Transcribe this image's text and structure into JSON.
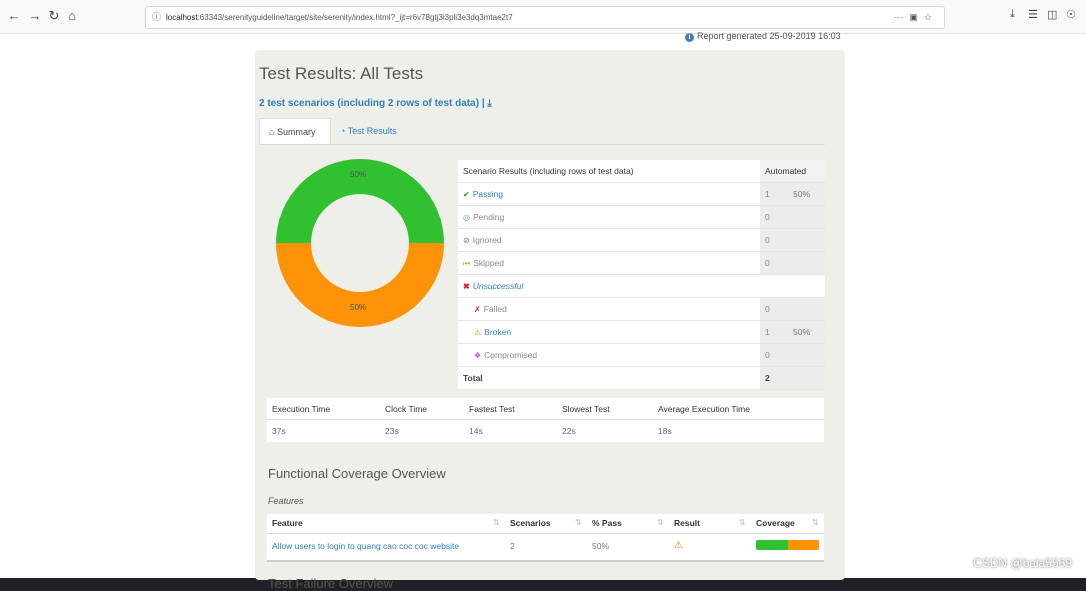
{
  "browser": {
    "url_host": "localhost",
    "url_rest": ":63343/serenityguideline/target/site/serenity/index.html?_ijt=r6v78gtj3i3pli3e3dq3mtae2t7"
  },
  "report": {
    "generated": "Report generated 25-09-2019 16:03",
    "title": "Test Results: All Tests",
    "scenarios_link": "2 test scenarios (including 2 rows of test data) |",
    "tabs": [
      "Summary",
      "Test Results"
    ]
  },
  "donut": {
    "passing_label": "50%",
    "failing_label": "50%",
    "passing_fraction": 0.5,
    "colors": {
      "passing": "#30c030",
      "broken": "#ff9308"
    }
  },
  "results_table": {
    "header": "Scenario Results (including rows of test data)",
    "header_col": "Automated",
    "rows": [
      {
        "label": "Passing",
        "count": "1",
        "pct": "50%"
      },
      {
        "label": "Pending",
        "count": "0",
        "pct": ""
      },
      {
        "label": "Ignored",
        "count": "0",
        "pct": ""
      },
      {
        "label": "Skipped",
        "count": "0",
        "pct": ""
      },
      {
        "label": "Unsuccessful",
        "count": "",
        "pct": ""
      },
      {
        "label": "Failed",
        "count": "0",
        "pct": ""
      },
      {
        "label": "Broken",
        "count": "1",
        "pct": "50%"
      },
      {
        "label": "Compromised",
        "count": "0",
        "pct": ""
      },
      {
        "label": "Total",
        "count": "2",
        "pct": ""
      }
    ]
  },
  "timing": {
    "headers": [
      "Execution Time",
      "Clock Time",
      "Fastest Test",
      "Slowest Test",
      "Average Execution Time"
    ],
    "values": [
      "37s",
      "23s",
      "14s",
      "22s",
      "18s"
    ]
  },
  "coverage": {
    "title": "Functional Coverage Overview",
    "subtitle": "Features",
    "headers": [
      "Feature",
      "Scenarios",
      "% Pass",
      "Result",
      "Coverage"
    ],
    "row": {
      "feature": "Allow users to login to quang cao coc coc website",
      "scenarios": "2",
      "pass": "50%",
      "pass_fraction": 0.5
    }
  },
  "failure_title": "Test Failure Overview",
  "watermark": "CSDN @bala5569"
}
